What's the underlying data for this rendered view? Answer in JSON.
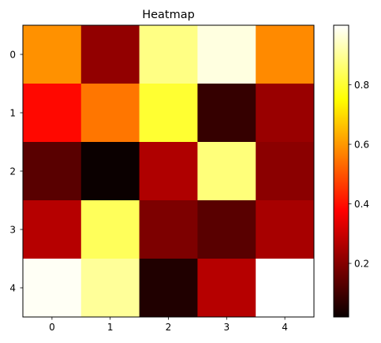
{
  "chart_data": {
    "type": "heatmap",
    "title": "Heatmap",
    "colormap": "hot",
    "x_ticks": [
      "0",
      "1",
      "2",
      "3",
      "4"
    ],
    "y_ticks": [
      "0",
      "1",
      "2",
      "3",
      "4"
    ],
    "values": [
      [
        0.59,
        0.21,
        0.88,
        0.97,
        0.58
      ],
      [
        0.39,
        0.55,
        0.8,
        0.08,
        0.22
      ],
      [
        0.13,
        0.02,
        0.25,
        0.87,
        0.2
      ],
      [
        0.26,
        0.84,
        0.18,
        0.13,
        0.24
      ],
      [
        0.99,
        0.9,
        0.05,
        0.26,
        1.0
      ]
    ],
    "colorbar": {
      "range": [
        0.02,
        1.0
      ],
      "ticks": [
        0.2,
        0.4,
        0.6,
        0.8
      ],
      "tick_labels": [
        "0.2",
        "0.4",
        "0.6",
        "0.8"
      ]
    }
  }
}
